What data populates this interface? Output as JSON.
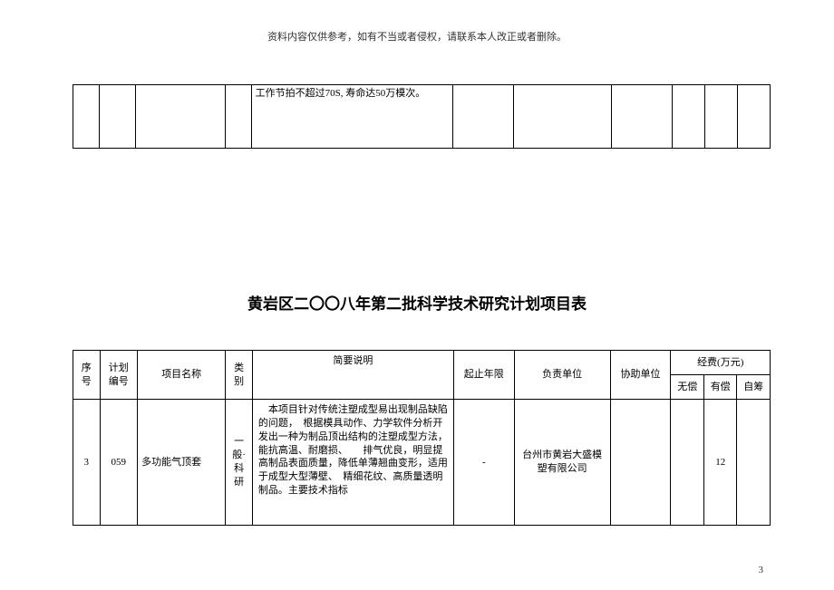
{
  "disclaimer": "资料内容仅供参考，如有不当或者侵权，请联系本人改正或者删除。",
  "top_fragment": {
    "desc": "工作节拍不超过70S, 寿命达50万模次。"
  },
  "title": "黄岩区二〇〇八年第二批科学技术研究计划项目表",
  "headers": {
    "seq": "序号",
    "plan_no": "计划编号",
    "name": "项目名称",
    "category": "类别",
    "desc": "简要说明",
    "period": "起止年限",
    "unit": "负责单位",
    "assist": "协助单位",
    "funds": "经费(万元)",
    "fund_free": "无偿",
    "fund_paid": "有偿",
    "fund_self": "自筹"
  },
  "row": {
    "seq": "3",
    "plan_no": "059",
    "name": "多功能气顶套",
    "category": "一般·科研",
    "desc": "　本项目针对传统注塑成型易出现制品缺陷的问题，　根据模具动作、力学软件分析开发出一种为制品顶出结构的注塑成型方法，　能抗高温、耐磨损、　　排气优良，明显提高制品表面质量，降低单薄翘曲变形，适用于成型大型薄壁、　精细花纹、高质量透明制品。主要技术指标",
    "period": "-",
    "unit": "台州市黄岩大盛模塑有限公司",
    "assist": "",
    "fund_free": "",
    "fund_paid": "12",
    "fund_self": ""
  },
  "page_number": "3"
}
